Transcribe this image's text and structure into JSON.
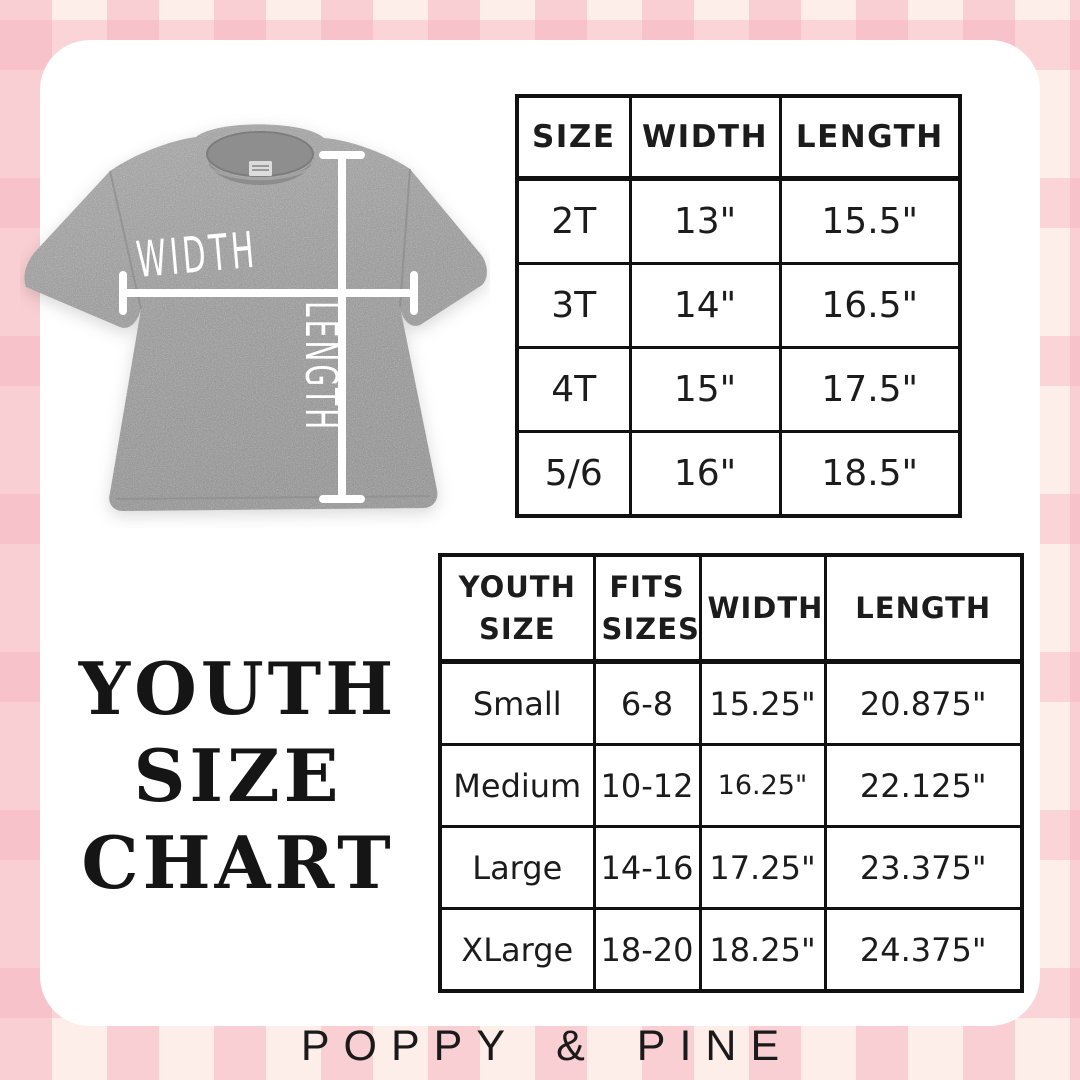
{
  "brand": "POPPY & PINE",
  "title": {
    "line1": "YOUTH",
    "line2": "SIZE",
    "line3": "CHART"
  },
  "shirt": {
    "width_label": "WIDTH",
    "length_label": "LENGTH"
  },
  "toddler_table": {
    "headers": [
      "SIZE",
      "WIDTH",
      "LENGTH"
    ],
    "rows": [
      [
        "2T",
        "13\"",
        "15.5\""
      ],
      [
        "3T",
        "14\"",
        "16.5\""
      ],
      [
        "4T",
        "15\"",
        "17.5\""
      ],
      [
        "5/6",
        "16\"",
        "18.5\""
      ]
    ]
  },
  "youth_table": {
    "headers": [
      "YOUTH SIZE",
      "FITS SIZES",
      "WIDTH",
      "LENGTH"
    ],
    "rows": [
      [
        "Small",
        "6-8",
        "15.25\"",
        "20.875\""
      ],
      [
        "Medium",
        "10-12",
        "16.25\"",
        "22.125\""
      ],
      [
        "Large",
        "14-16",
        "17.25\"",
        "23.375\""
      ],
      [
        "XLarge",
        "18-20",
        "18.25\"",
        "24.375\""
      ]
    ]
  },
  "colors": {
    "background_pink": "#fdeeea",
    "stripe_pink": "#f6b0bd",
    "card_white": "#ffffff",
    "table_border": "#111111",
    "text_black": "#1c1c1c",
    "shirt_gray": "#9a9a9a",
    "measure_line_white": "#ffffff"
  }
}
